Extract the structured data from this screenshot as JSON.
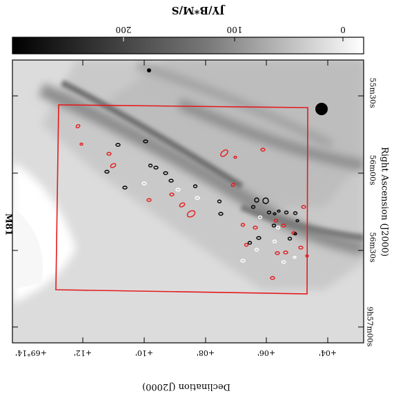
{
  "colorbar": {
    "unit_label": "JY/B*M/S",
    "ticks": [
      "200",
      "100",
      "0"
    ],
    "range": [
      0,
      250
    ],
    "orientation": "top, horizontal, reversed (dark = high)"
  },
  "object_label": "M81",
  "axes": {
    "right_label": "Right Ascension (J2000)",
    "bottom_label": "Declination (J2000)",
    "ra_ticks": [
      "55m30s",
      "56m00s",
      "56m30s",
      "9h57m00s"
    ],
    "dec_ticks": [
      "+69°14'",
      "+12'",
      "+10'",
      "+08'",
      "+06'",
      "+04'"
    ]
  },
  "overlay": {
    "box_color": "#e41a1c",
    "contour_colors": {
      "red": "#e41a1c",
      "black": "#000000",
      "white": "#ffffff"
    }
  }
}
